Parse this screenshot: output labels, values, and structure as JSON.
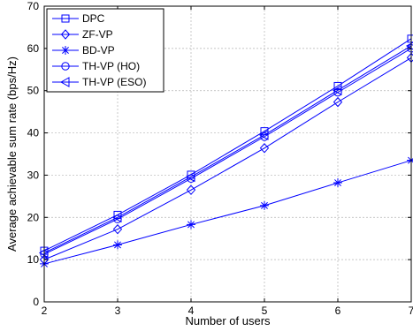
{
  "chart_data": {
    "type": "line",
    "title": "",
    "xlabel": "Number of users",
    "ylabel": "Average achievable sum rate (bps/Hz)",
    "x": [
      2,
      3,
      4,
      5,
      6,
      7
    ],
    "xlim": [
      2,
      7
    ],
    "ylim": [
      0,
      70
    ],
    "xticks": [
      2,
      3,
      4,
      5,
      6,
      7
    ],
    "yticks": [
      0,
      10,
      20,
      30,
      40,
      50,
      60,
      70
    ],
    "grid": true,
    "legend_position": "top-left",
    "series": [
      {
        "name": "DPC",
        "marker": "square",
        "color": "#0000ff",
        "values": [
          12.1,
          20.6,
          30.1,
          40.4,
          51.1,
          62.3
        ]
      },
      {
        "name": "ZF-VP",
        "marker": "diamond",
        "color": "#0000ff",
        "values": [
          10.0,
          17.2,
          26.5,
          36.4,
          47.3,
          57.8
        ]
      },
      {
        "name": "BD-VP",
        "marker": "asterisk",
        "color": "#0000ff",
        "values": [
          9.0,
          13.5,
          18.3,
          22.8,
          28.2,
          33.5
        ]
      },
      {
        "name": "TH-VP (HO)",
        "marker": "circle",
        "color": "#0000ff",
        "values": [
          11.3,
          19.6,
          29.2,
          39.1,
          49.6,
          60.0
        ]
      },
      {
        "name": "TH-VP (ESO)",
        "marker": "triangle-left",
        "color": "#0000ff",
        "values": [
          11.6,
          20.0,
          29.6,
          39.5,
          50.1,
          60.6
        ]
      }
    ]
  }
}
